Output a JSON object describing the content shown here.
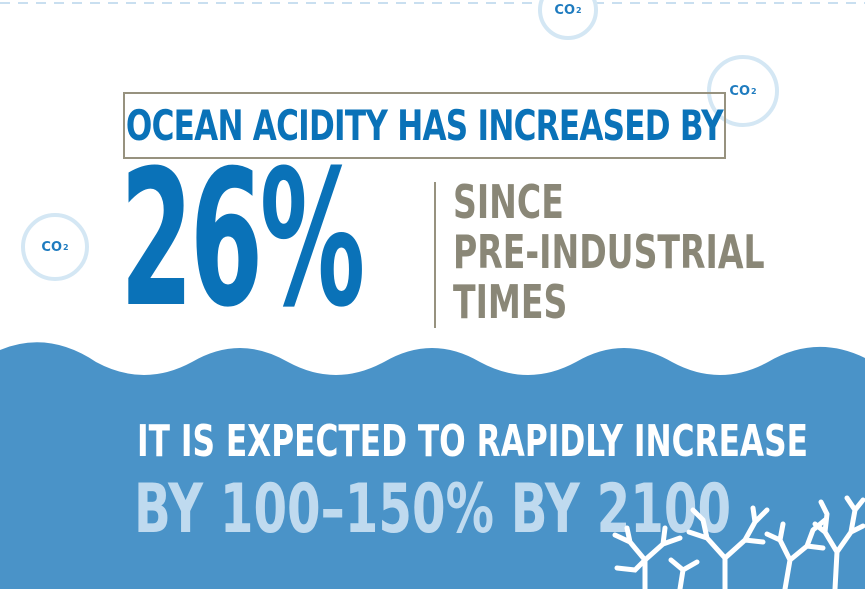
{
  "bubbles": [
    {
      "label": "CO",
      "sub": "2"
    },
    {
      "label": "CO",
      "sub": "2"
    },
    {
      "label": "CO",
      "sub": "2"
    }
  ],
  "headline": "OCEAN ACIDITY HAS INCREASED BY",
  "big_number": "26%",
  "since_lines": [
    "SINCE",
    "PRE-INDUSTRIAL",
    "TIMES"
  ],
  "bottom": {
    "line1": "IT IS EXPECTED TO RAPIDLY INCREASE",
    "line2": "BY 100–150% BY 2100"
  },
  "colors": {
    "primary_blue": "#0a72b8",
    "ocean_blue": "#4a93c8",
    "light_blue_text": "#bfdaef",
    "taupe": "#8a8777",
    "bubble_ring": "#d4e7f4"
  },
  "icons": [
    "co2-bubble-icon",
    "coral-icon",
    "wave-decoration"
  ]
}
